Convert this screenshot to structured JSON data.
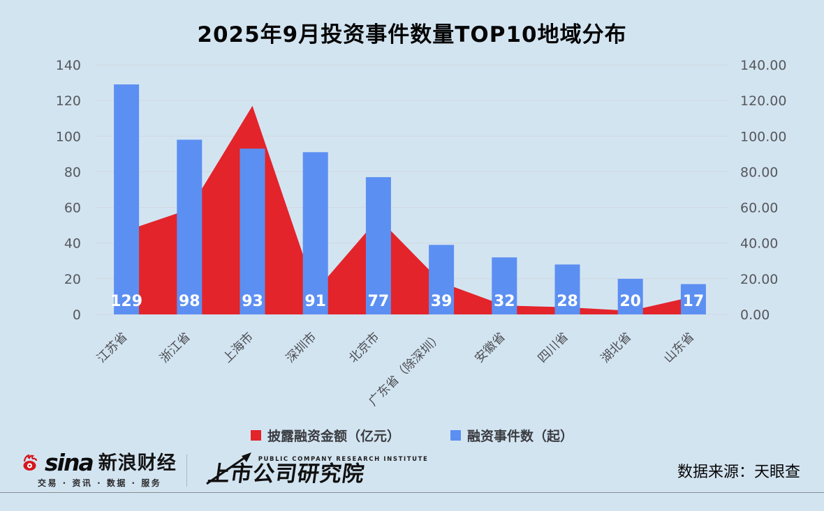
{
  "title": "2025年9月投资事件数量TOP10地域分布",
  "chart_data": {
    "type": "combo-bar-area",
    "title": "2025年9月投资事件数量TOP10地域分布",
    "categories": [
      "江苏省",
      "浙江省",
      "上海市",
      "深圳市",
      "北京市",
      "广东省（除深圳）",
      "安徽省",
      "四川省",
      "湖北省",
      "山东省"
    ],
    "series": [
      {
        "name": "披露融资金额（亿元）",
        "type": "area",
        "axis": "right",
        "color": "#e3242b",
        "values": [
          47,
          59,
          117,
          13,
          54,
          18,
          5,
          4,
          2,
          10
        ]
      },
      {
        "name": "融资事件数（起）",
        "type": "bar",
        "axis": "left",
        "color": "#5c8ff2",
        "values": [
          129,
          98,
          93,
          91,
          77,
          39,
          32,
          28,
          20,
          17
        ]
      }
    ],
    "bar_value_labels": [
      "129",
      "98",
      "93",
      "91",
      "77",
      "39",
      "32",
      "28",
      "20",
      "17"
    ],
    "left_axis": {
      "min": 0,
      "max": 140,
      "step": 20,
      "tick_labels": [
        "0",
        "20",
        "40",
        "60",
        "80",
        "100",
        "120",
        "140"
      ]
    },
    "right_axis": {
      "min": 0,
      "max": 140,
      "step": 20,
      "tick_labels": [
        "0.00",
        "20.00",
        "40.00",
        "60.00",
        "80.00",
        "100.00",
        "120.00",
        "140.00"
      ]
    },
    "grid": true,
    "legend_position": "bottom"
  },
  "legend": {
    "items": [
      {
        "label": "披露融资金额（亿元）",
        "color": "#e3242b"
      },
      {
        "label": "融资事件数（起）",
        "color": "#5c8ff2"
      }
    ]
  },
  "footer": {
    "sina": {
      "brand": "sina",
      "name": "新浪财经",
      "tagline": "交易 · 资讯 · 数据 · 服务"
    },
    "pcri": {
      "en": "PUBLIC COMPANY RESEARCH INSTITUTE",
      "name": "上市公司研究院"
    },
    "source": "数据来源：天眼查"
  },
  "colors": {
    "background": "#d3e4f1",
    "bar": "#5c8ff2",
    "area": "#e3242b",
    "grid": "#cfd8df",
    "axis_text": "#55585c",
    "x_label_text": "#4c4e52",
    "value_label": "#ffffff"
  }
}
